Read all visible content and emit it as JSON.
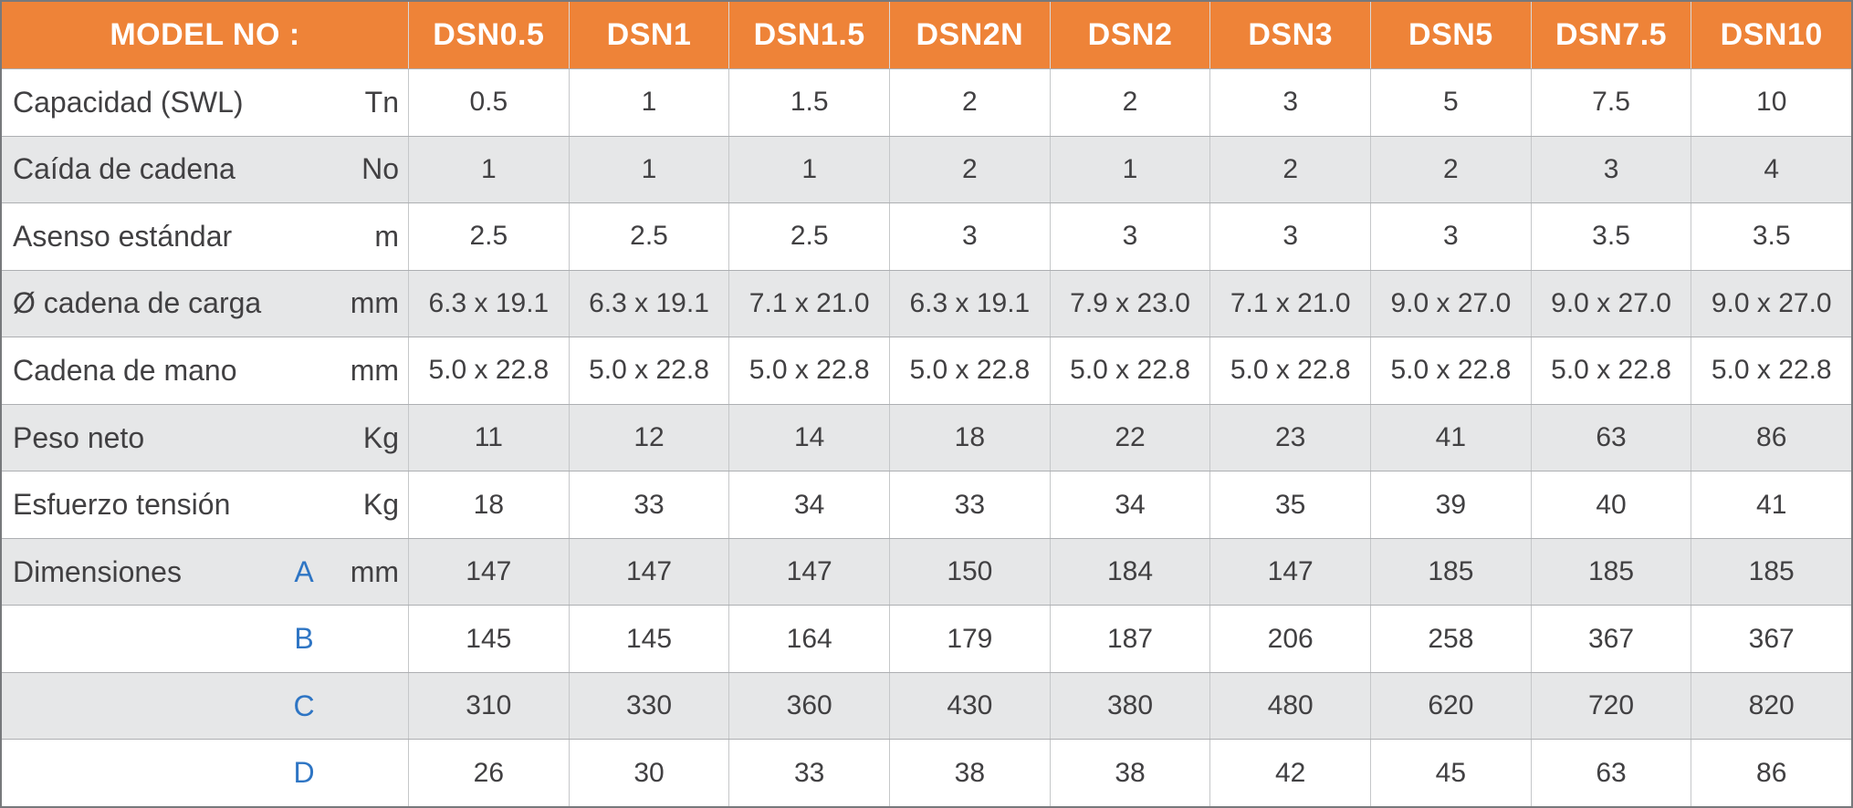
{
  "theme": {
    "header_bg": "#EE8338",
    "header_text": "#FFFFFF",
    "row_white_bg": "#FFFFFF",
    "row_gray_bg": "#E6E7E8",
    "body_text": "#414042",
    "dimension_letter_color": "#2E75C4",
    "outer_border": "#77797C",
    "row_line": "#ADAFB2",
    "column_line": "#C5C7C9"
  },
  "table": {
    "header": {
      "label": "MODEL NO :",
      "models": [
        "DSN0.5",
        "DSN1",
        "DSN1.5",
        "DSN2N",
        "DSN2",
        "DSN3",
        "DSN5",
        "DSN7.5",
        "DSN10"
      ]
    },
    "rows": [
      {
        "key": "capacidad-swl",
        "name": "Capacidad (SWL)",
        "letter": "",
        "unit": "Tn",
        "values": [
          "0.5",
          "1",
          "1.5",
          "2",
          "2",
          "3",
          "5",
          "7.5",
          "10"
        ]
      },
      {
        "key": "caida-de-cadena",
        "name": "Caída de cadena",
        "letter": "",
        "unit": "No",
        "values": [
          "1",
          "1",
          "1",
          "2",
          "1",
          "2",
          "2",
          "3",
          "4"
        ]
      },
      {
        "key": "asenso-estandar",
        "name": "Asenso estándar",
        "letter": "",
        "unit": "m",
        "values": [
          "2.5",
          "2.5",
          "2.5",
          "3",
          "3",
          "3",
          "3",
          "3.5",
          "3.5"
        ]
      },
      {
        "key": "cadena-de-carga",
        "name": "Ø cadena de carga",
        "letter": "",
        "unit": "mm",
        "values": [
          "6.3 x 19.1",
          "6.3 x 19.1",
          "7.1 x 21.0",
          "6.3 x 19.1",
          "7.9 x 23.0",
          "7.1 x 21.0",
          "9.0 x 27.0",
          "9.0 x 27.0",
          "9.0 x 27.0"
        ]
      },
      {
        "key": "cadena-de-mano",
        "name": "Cadena de mano",
        "letter": "",
        "unit": "mm",
        "values": [
          "5.0 x 22.8",
          "5.0 x 22.8",
          "5.0 x 22.8",
          "5.0 x 22.8",
          "5.0 x 22.8",
          "5.0 x 22.8",
          "5.0 x 22.8",
          "5.0 x 22.8",
          "5.0 x 22.8"
        ]
      },
      {
        "key": "peso-neto",
        "name": "Peso neto",
        "letter": "",
        "unit": "Kg",
        "values": [
          "11",
          "12",
          "14",
          "18",
          "22",
          "23",
          "41",
          "63",
          "86"
        ]
      },
      {
        "key": "esfuerzo-tension",
        "name": "Esfuerzo tensión",
        "letter": "",
        "unit": "Kg",
        "values": [
          "18",
          "33",
          "34",
          "33",
          "34",
          "35",
          "39",
          "40",
          "41"
        ]
      },
      {
        "key": "dimension-a",
        "name": "Dimensiones",
        "letter": "A",
        "unit": "mm",
        "values": [
          "147",
          "147",
          "147",
          "150",
          "184",
          "147",
          "185",
          "185",
          "185"
        ]
      },
      {
        "key": "dimension-b",
        "name": "",
        "letter": "B",
        "unit": "",
        "values": [
          "145",
          "145",
          "164",
          "179",
          "187",
          "206",
          "258",
          "367",
          "367"
        ]
      },
      {
        "key": "dimension-c",
        "name": "",
        "letter": "C",
        "unit": "",
        "values": [
          "310",
          "330",
          "360",
          "430",
          "380",
          "480",
          "620",
          "720",
          "820"
        ]
      },
      {
        "key": "dimension-d",
        "name": "",
        "letter": "D",
        "unit": "",
        "values": [
          "26",
          "30",
          "33",
          "38",
          "38",
          "42",
          "45",
          "63",
          "86"
        ]
      }
    ]
  }
}
